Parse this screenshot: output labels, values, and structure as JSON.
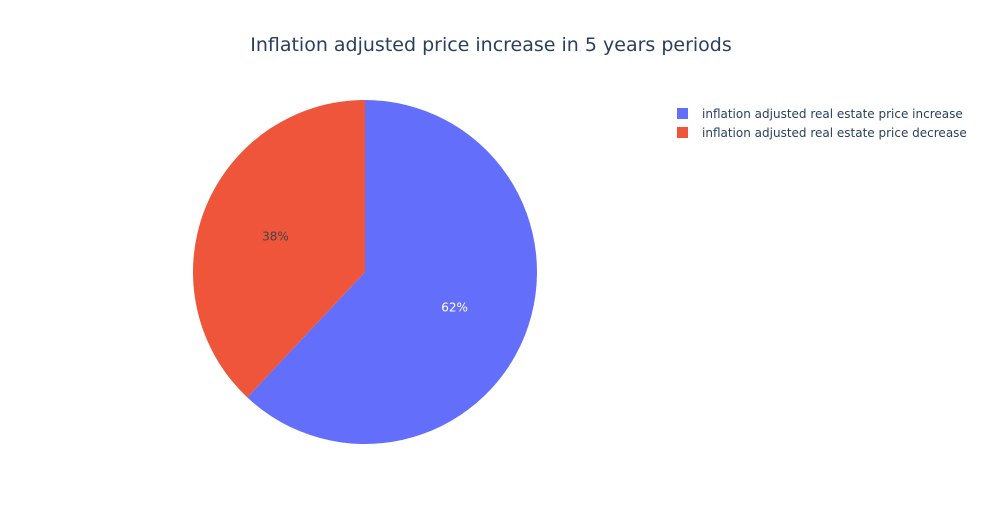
{
  "chart_data": {
    "type": "pie",
    "title": "Inflation adjusted price increase in 5 years periods",
    "slices": [
      {
        "label": "inflation adjusted real estate price increase",
        "value": 62,
        "display": "62%",
        "color": "#636efa",
        "label_color": "#ffffff"
      },
      {
        "label": "inflation adjusted real estate price decrease",
        "value": 38,
        "display": "38%",
        "color": "#ef553b",
        "label_color": "#444444"
      }
    ],
    "start_angle": "12 o'clock",
    "direction": "clockwise",
    "legend_position": "top-right"
  }
}
